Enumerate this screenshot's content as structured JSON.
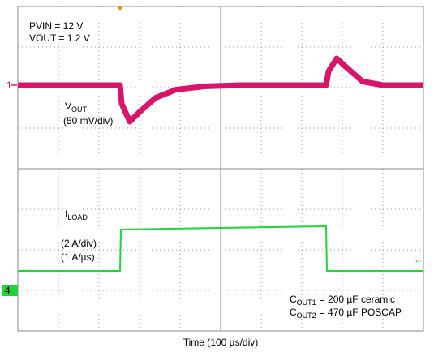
{
  "chart_data": {
    "type": "line",
    "x_label": "Time (100 µs/div)",
    "xlim": [
      0,
      10
    ],
    "ylim": [
      0,
      8
    ],
    "conditions": [
      "PVIN = 12 V",
      "VOUT = 1.2 V"
    ],
    "vout_label": {
      "symbol": "V",
      "subscript": "OUT",
      "scale": "(50 mV/div)"
    },
    "iload_label": {
      "symbol": "I",
      "subscript": "LOAD",
      "scale": "(2 A/div)",
      "slew": "(1 A/µs)"
    },
    "capacitors": [
      {
        "symbol": "C",
        "subscript": "OUT1",
        "text": "= 200 µF ceramic"
      },
      {
        "symbol": "C",
        "subscript": "OUT2",
        "text": "= 470 µF POSCAP"
      }
    ],
    "channel_markers": [
      {
        "label": "1",
        "level": 6.06,
        "color": "#d6156b"
      },
      {
        "label": "4",
        "level": 1.0,
        "color": "#22d33a"
      }
    ],
    "series": [
      {
        "color": "#d6156b",
        "x": [
          0,
          2.52,
          2.56,
          2.76,
          3.0,
          3.4,
          3.9,
          4.6,
          5.5,
          7.6,
          7.66,
          7.86,
          8.1,
          8.5,
          9.0,
          10
        ],
        "values": [
          6.06,
          6.06,
          5.6,
          5.16,
          5.4,
          5.75,
          5.95,
          6.03,
          6.06,
          6.06,
          6.4,
          6.72,
          6.5,
          6.15,
          6.06,
          6.06
        ]
      },
      {
        "color": "#22d33a",
        "x": [
          0,
          2.52,
          2.54,
          5.0,
          7.6,
          7.62,
          10
        ],
        "values": [
          1.48,
          1.48,
          2.5,
          2.54,
          2.58,
          1.48,
          1.48
        ]
      }
    ]
  }
}
